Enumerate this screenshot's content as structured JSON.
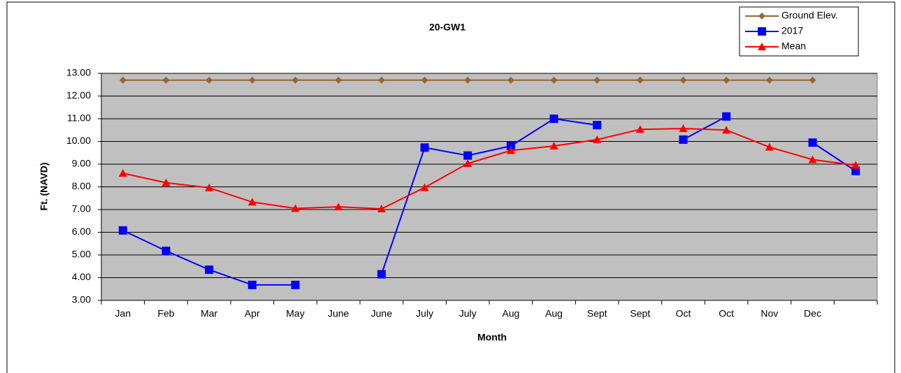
{
  "chart_data": {
    "type": "line",
    "title": "20-GW1",
    "xlabel": "Month",
    "ylabel": "Ft. (NAVD)",
    "categories": [
      "Jan",
      "Feb",
      "Mar",
      "Apr",
      "May",
      "June",
      "June",
      "July",
      "July",
      "Aug",
      "Aug",
      "Sept",
      "Sept",
      "Oct",
      "Oct",
      "Nov",
      "Dec",
      null
    ],
    "series": [
      {
        "name": "Ground Elev.",
        "color": "#9c6430",
        "marker": "diamond",
        "values": [
          12.7,
          12.7,
          12.7,
          12.7,
          12.7,
          12.7,
          12.7,
          12.7,
          12.7,
          12.7,
          12.7,
          12.7,
          12.7,
          12.7,
          12.7,
          12.7,
          12.7,
          null
        ]
      },
      {
        "name": "2017",
        "color": "#0000ff",
        "marker": "square",
        "values": [
          6.08,
          5.18,
          4.35,
          3.68,
          3.68,
          null,
          4.15,
          9.73,
          9.38,
          9.8,
          11.0,
          10.72,
          null,
          10.08,
          11.1,
          null,
          9.95,
          8.7
        ]
      },
      {
        "name": "Mean",
        "color": "#ff0000",
        "marker": "triangle",
        "values": [
          8.6,
          8.18,
          7.96,
          7.33,
          7.05,
          7.12,
          7.03,
          7.97,
          9.03,
          9.6,
          9.8,
          10.08,
          10.53,
          10.57,
          10.5,
          9.75,
          9.2,
          8.95
        ]
      }
    ],
    "ylim": [
      3,
      13
    ],
    "yticks": [
      {
        "value": 3,
        "label": "3.00"
      },
      {
        "value": 4,
        "label": "4.00"
      },
      {
        "value": 5,
        "label": "5.00"
      },
      {
        "value": 6,
        "label": "6.00"
      },
      {
        "value": 7,
        "label": "7.00"
      },
      {
        "value": 8,
        "label": "8.00"
      },
      {
        "value": 9,
        "label": "9.00"
      },
      {
        "value": 10,
        "label": "10.00"
      },
      {
        "value": 11,
        "label": "11.00"
      },
      {
        "value": 12,
        "label": "12.00"
      },
      {
        "value": 13,
        "label": "13.00"
      }
    ],
    "grid": true,
    "legend": "upper right",
    "plot_background": "#c0c0c0"
  }
}
